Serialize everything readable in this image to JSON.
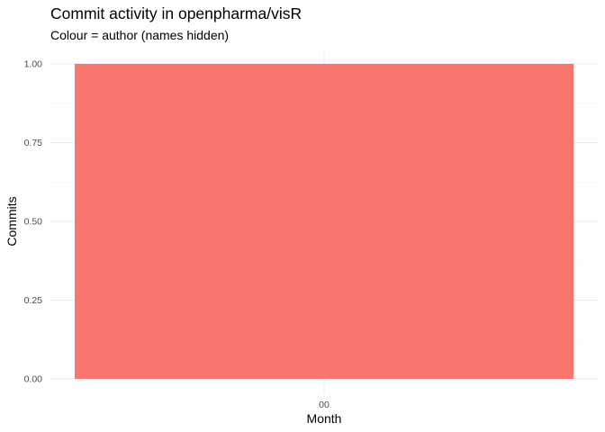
{
  "chart_data": {
    "type": "bar",
    "title": "Commit activity in openpharma/visR",
    "subtitle": "Colour = author (names hidden)",
    "xlabel": "Month",
    "ylabel": "Commits",
    "categories": [
      "00"
    ],
    "series": [
      {
        "values": [
          1
        ],
        "color": "#F8766D"
      }
    ],
    "ylim": [
      0,
      1
    ],
    "yticks": [
      0,
      0.25,
      0.5,
      0.75,
      1
    ],
    "ytick_labels": [
      "0.00",
      "0.25",
      "0.50",
      "0.75",
      "1.00"
    ],
    "grid": true,
    "legend": "none"
  }
}
